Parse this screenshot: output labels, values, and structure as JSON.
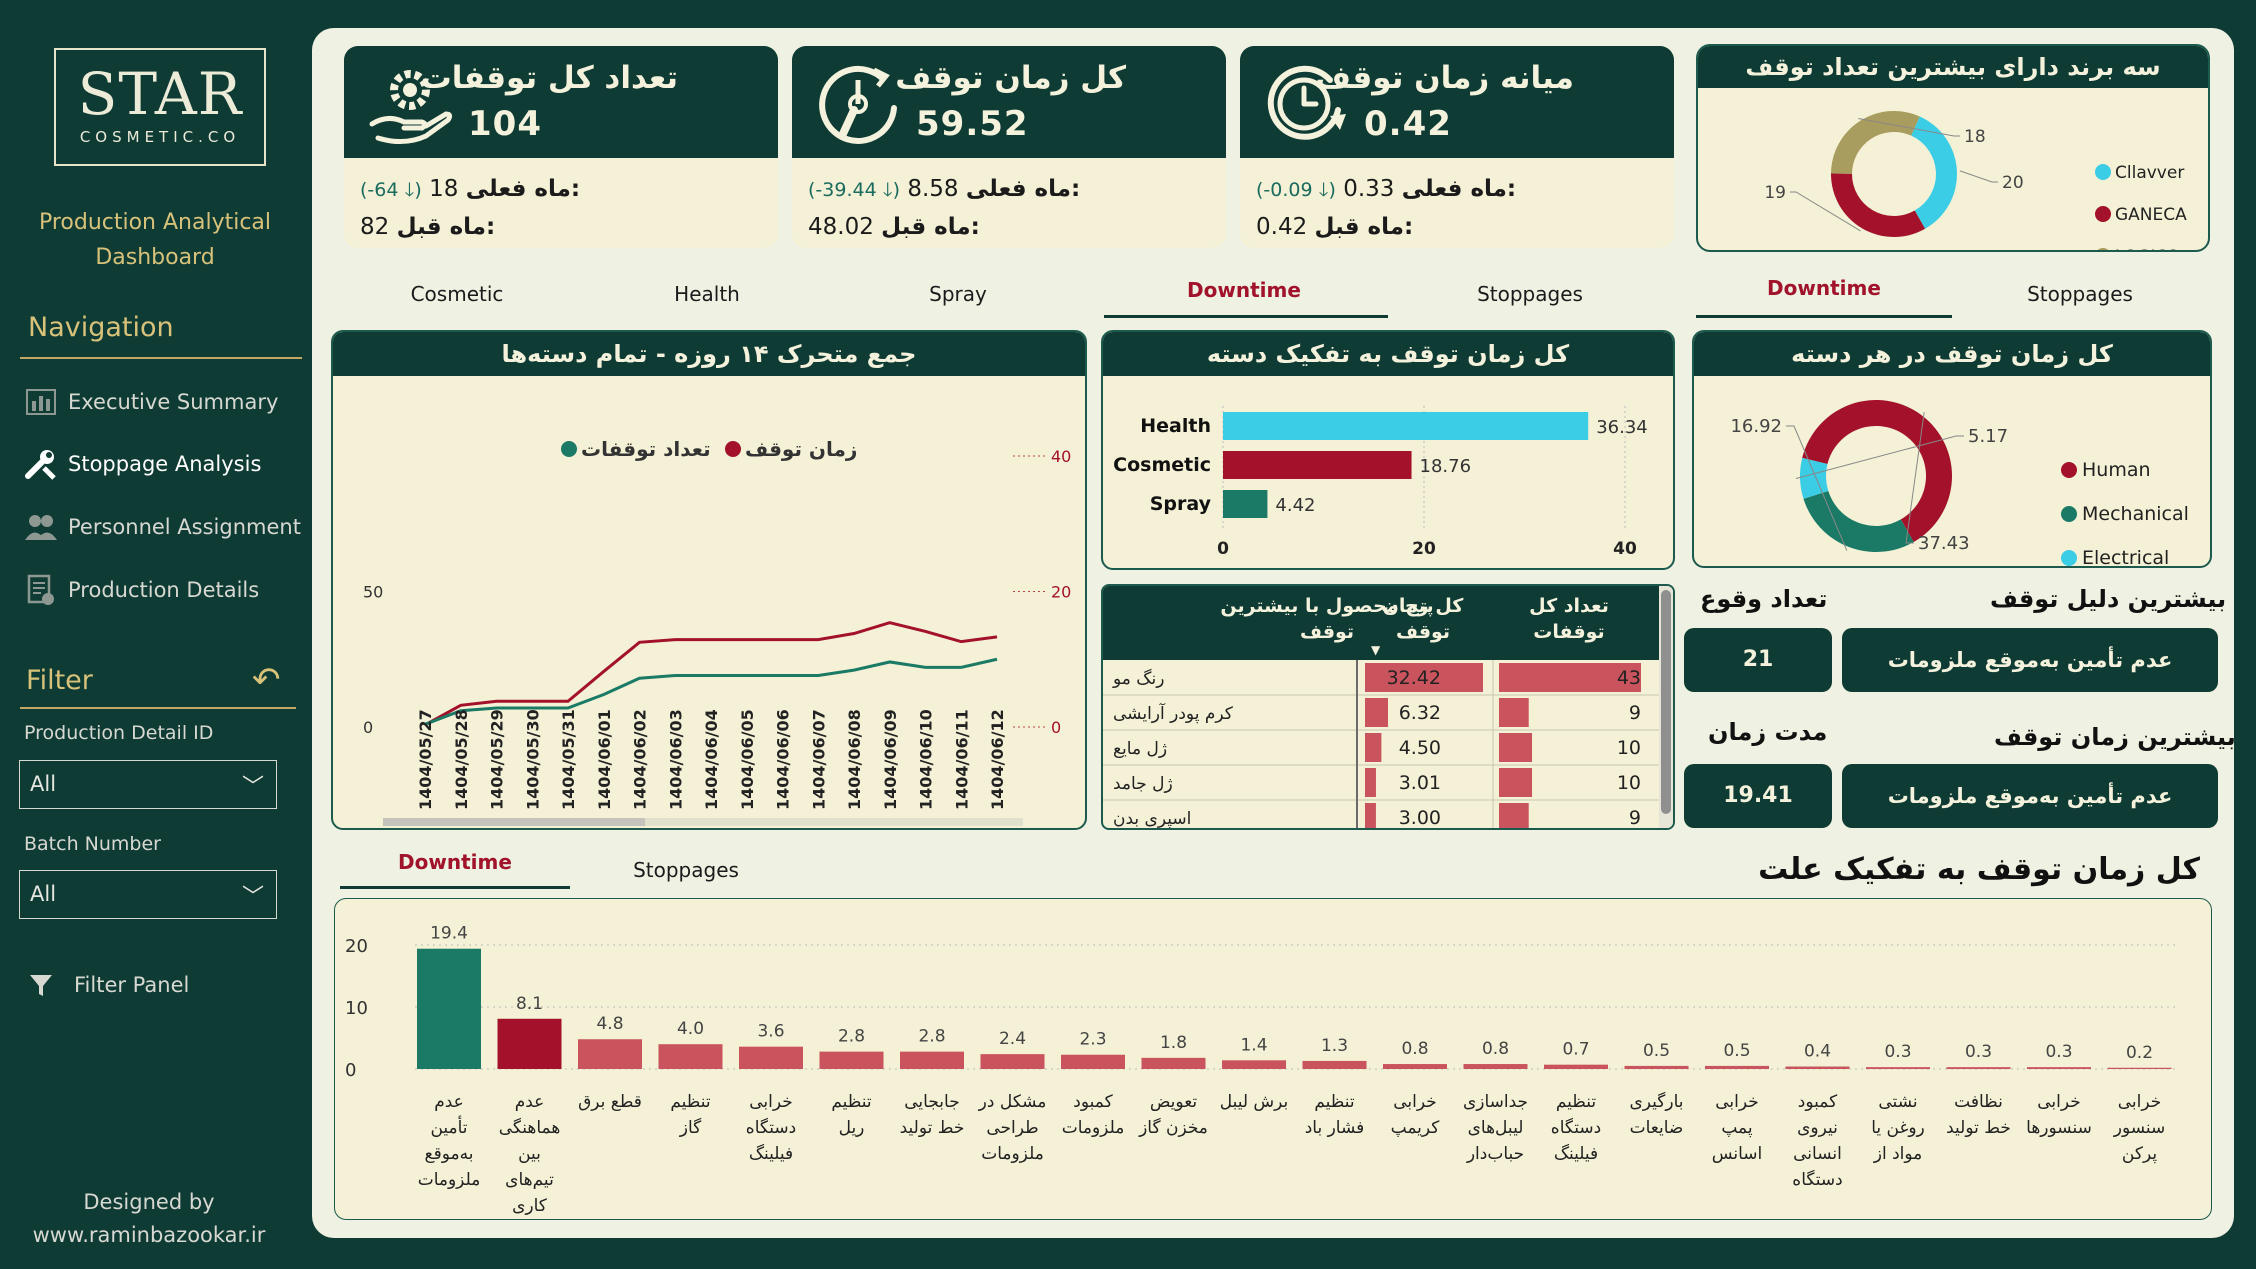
{
  "brand": {
    "logo_main": "STAR",
    "logo_sub": "COSMETIC.CO",
    "app_title_line1": "Production Analytical",
    "app_title_line2": "Dashboard"
  },
  "nav": {
    "title": "Navigation",
    "items": [
      {
        "label": "Executive Summary",
        "icon": "bar-chart-icon"
      },
      {
        "label": "Stoppage Analysis",
        "icon": "tools-icon"
      },
      {
        "label": "Personnel Assignment",
        "icon": "people-icon"
      },
      {
        "label": "Production Details",
        "icon": "document-icon"
      }
    ]
  },
  "filter": {
    "title": "Filter",
    "production_label": "Production Detail ID",
    "production_value": "All",
    "batch_label": "Batch Number",
    "batch_value": "All",
    "panel_label": "Filter Panel"
  },
  "credit": {
    "line1": "Designed by",
    "line2": "www.raminbazookar.ir"
  },
  "kpis": [
    {
      "title": "تعداد کل توقفات",
      "value": "104",
      "current_label": "ماه فعلی:",
      "current_value": "18",
      "change": "(-64 🡓)",
      "prev_label": "ماه قبل:",
      "prev_value": "82"
    },
    {
      "title": "کل زمان توقف",
      "value": "59.52",
      "current_label": "ماه فعلی:",
      "current_value": "8.58",
      "change": "(-39.44 🡓)",
      "prev_label": "ماه قبل:",
      "prev_value": "48.02"
    },
    {
      "title": "میانه زمان توقف",
      "value": "0.42",
      "current_label": "ماه فعلی:",
      "current_value": "0.33",
      "change": "(-0.09 🡓)",
      "prev_label": "ماه قبل:",
      "prev_value": "0.42"
    }
  ],
  "brands_panel": {
    "title": "سه برند دارای بیشترین تعداد توقف",
    "legend": [
      "Cllavver",
      "GANECA",
      "LOGICS"
    ],
    "values": [
      20,
      19,
      18
    ],
    "colors": [
      "#3ccde6",
      "#a3122a",
      "#a89c5e"
    ]
  },
  "category_tabs": [
    "Cosmetic",
    "Health",
    "Spray"
  ],
  "mid_tabs": {
    "downtime": "Downtime",
    "stoppages": "Stoppages"
  },
  "right_tabs": {
    "downtime": "Downtime",
    "stoppages": "Stoppages"
  },
  "bottom_tabs": {
    "downtime": "Downtime",
    "stoppages": "Stoppages"
  },
  "colors": {
    "dark": "#0e3b34",
    "red": "#a3122a",
    "teal": "#1a7a66",
    "cyan": "#3ccde6",
    "pink": "#c9545e"
  },
  "chart_data": [
    {
      "type": "line",
      "title": "جمع متحرک ۱۴ روزه - تمام دسته‌ها",
      "legend": [
        "زمان توقف",
        "تعداد توقفات"
      ],
      "x": [
        "1404/05/27",
        "1404/05/28",
        "1404/05/29",
        "1404/05/30",
        "1404/05/31",
        "1404/06/01",
        "1404/06/02",
        "1404/06/03",
        "1404/06/04",
        "1404/06/05",
        "1404/06/06",
        "1404/06/07",
        "1404/06/08",
        "1404/06/09",
        "1404/06/10",
        "1404/06/11",
        "1404/06/12"
      ],
      "left_ticks": [
        "50",
        "0"
      ],
      "right_ticks": [
        "40",
        "20",
        "0"
      ],
      "left_range": [
        0,
        100
      ],
      "right_range": [
        0,
        40
      ],
      "series": [
        {
          "name": "زمان توقف",
          "color": "#a3122a",
          "axis": "right",
          "values": [
            0.3,
            3.2,
            3.8,
            3.8,
            3.8,
            8.2,
            12.5,
            12.9,
            12.9,
            12.9,
            12.9,
            12.9,
            13.8,
            15.4,
            14.1,
            12.6,
            13.3
          ]
        },
        {
          "name": "تعداد توقفات",
          "color": "#1a7a66",
          "axis": "left",
          "values": [
            1,
            6,
            7,
            7,
            7,
            12,
            18,
            19,
            19,
            19,
            19,
            19,
            21,
            24,
            22,
            22,
            25
          ]
        }
      ]
    },
    {
      "type": "bar",
      "title": "کل زمان توقف به تفکیک دسته",
      "categories": [
        "Health",
        "Cosmetic",
        "Spray"
      ],
      "values": [
        36.34,
        18.76,
        4.42
      ],
      "value_labels": [
        "36.34",
        "18.76",
        "4.42"
      ],
      "colors": [
        "#3ccde6",
        "#a3122a",
        "#1a7a66"
      ],
      "xticks": [
        "0",
        "20",
        "40"
      ],
      "xlim": [
        0,
        40
      ]
    },
    {
      "type": "pie",
      "title": "کل زمان توقف در هر دسته",
      "labels": [
        "Human",
        "Mechanical",
        "Electrical"
      ],
      "values": [
        37.43,
        16.92,
        5.17
      ],
      "value_labels": [
        "37.43",
        "16.92",
        "5.17"
      ],
      "colors": [
        "#a3122a",
        "#1a7a66",
        "#3ccde6"
      ]
    },
    {
      "type": "table",
      "headers": [
        "پنج محصول با بیشترین توقف",
        "کل زمان توقف",
        "تعداد کل توقفات"
      ],
      "rows": [
        {
          "product": "رنگ مو",
          "time": 32.42,
          "time_label": "32.42",
          "count": 43,
          "count_label": "43"
        },
        {
          "product": "کرم پودر آرایشی",
          "time": 6.32,
          "time_label": "6.32",
          "count": 9,
          "count_label": "9"
        },
        {
          "product": "ژل مایع",
          "time": 4.5,
          "time_label": "4.50",
          "count": 10,
          "count_label": "10"
        },
        {
          "product": "ژل جامد",
          "time": 3.01,
          "time_label": "3.01",
          "count": 10,
          "count_label": "10"
        },
        {
          "product": "اسپری بدن",
          "time": 3.0,
          "time_label": "3.00",
          "count": 9,
          "count_label": "9"
        }
      ]
    },
    {
      "type": "bar",
      "title": "کل زمان توقف به تفکیک علت",
      "categories": [
        "عدم تأمین به‌موقع ملزومات",
        "عدم هماهنگی بین تیم‌های کاری",
        "قطع برق",
        "تنظیم گاز",
        "خرابی دستگاه فیلینگ",
        "تنظیم ریل",
        "جابجایی خط تولید",
        "مشکل در طراحی ملزومات",
        "کمبود ملزومات",
        "تعویض مخزن گاز",
        "برش لیبل",
        "تنظیم فشار باد",
        "خرابی کریمپ",
        "جداسازی لیبل‌های حباب‌دار",
        "تنظیم دستگاه فیلینگ",
        "بارگیری ضایعات",
        "خرابی پمپ اسانس",
        "کمبود نیروی انسانی دستگاه",
        "نشتی روغن یا مواد از",
        "نظافت خط تولید",
        "خرابی سنسورها",
        "خرابی سنسور پرکن"
      ],
      "values": [
        19.4,
        8.1,
        4.8,
        4.0,
        3.6,
        2.8,
        2.8,
        2.4,
        2.3,
        1.8,
        1.4,
        1.3,
        0.8,
        0.8,
        0.7,
        0.5,
        0.5,
        0.4,
        0.3,
        0.3,
        0.3,
        0.2
      ],
      "value_labels": [
        "19.4",
        "8.1",
        "4.8",
        "4.0",
        "3.6",
        "2.8",
        "2.8",
        "2.4",
        "2.3",
        "1.8",
        "1.4",
        "1.3",
        "0.8",
        "0.8",
        "0.7",
        "0.5",
        "0.5",
        "0.4",
        "0.3",
        "0.3",
        "0.3",
        "0.2"
      ],
      "yticks": [
        "20",
        "10",
        "0"
      ],
      "ylim": [
        0,
        20
      ]
    }
  ],
  "top_reason": {
    "label": "بیشترین دلیل توقف",
    "count_label": "تعداد وقوع",
    "value": "عدم تأمین به‌موقع ملزومات",
    "count": "21"
  },
  "top_time": {
    "label": "بیشترین زمان توقف",
    "duration_label": "مدت زمان",
    "value": "عدم تأمین به‌موقع ملزومات",
    "duration": "19.41"
  }
}
